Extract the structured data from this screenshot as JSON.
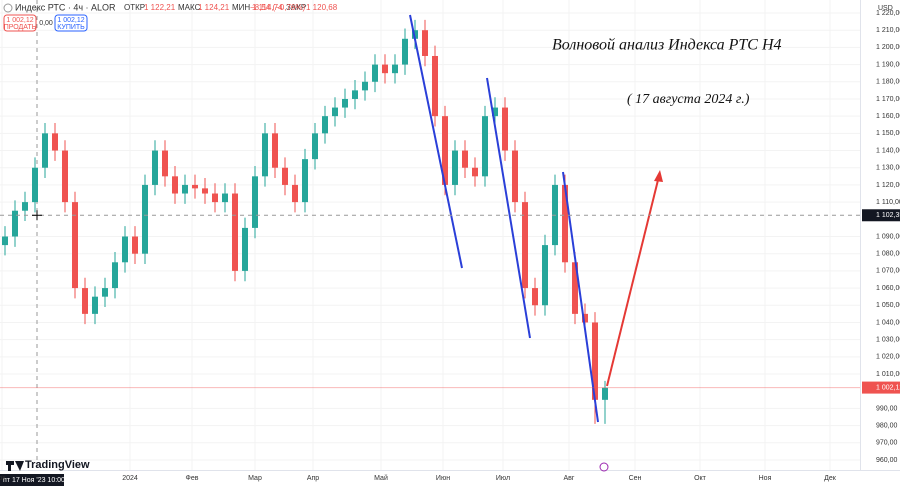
{
  "header": {
    "symbol": "Индекс РТС · 4ч · ALOR",
    "ohlc": [
      {
        "label": "ОТКР",
        "value": "1 122,21"
      },
      {
        "label": "МАКС",
        "value": "1 124,21"
      },
      {
        "label": "МИН",
        "value": "1 114,74"
      },
      {
        "label": "ЗАКР",
        "value": "1 120,68"
      }
    ],
    "change": "−8,54 (−0,76%)",
    "sell_price": "1 002,12",
    "sell": "ПРОДАТЬ",
    "spread": "0,00",
    "buy_price": "1 002,12",
    "buy": "КУПИТЬ",
    "currency": "USD"
  },
  "annotations": {
    "title": "Волновой анализ Индекса РТС Н4",
    "date": "( 17 августа 2024 г.)"
  },
  "footer": {
    "brand": "TradingView",
    "crosshair_time": "пт 17 Ноя '23  10:00"
  },
  "chart_data": {
    "type": "candlestick",
    "up_color": "#26a69a",
    "down_color": "#ef5350",
    "candles": [
      [
        1085,
        1096,
        1079,
        1090
      ],
      [
        1090,
        1111,
        1084,
        1105
      ],
      [
        1105,
        1116,
        1099,
        1110
      ],
      [
        1110,
        1136,
        1104,
        1130
      ],
      [
        1130,
        1156,
        1124,
        1150
      ],
      [
        1150,
        1156,
        1134,
        1140
      ],
      [
        1140,
        1146,
        1104,
        1110
      ],
      [
        1110,
        1116,
        1054,
        1060
      ],
      [
        1060,
        1066,
        1039,
        1045
      ],
      [
        1045,
        1061,
        1039,
        1055
      ],
      [
        1055,
        1066,
        1049,
        1060
      ],
      [
        1060,
        1081,
        1054,
        1075
      ],
      [
        1075,
        1096,
        1069,
        1090
      ],
      [
        1090,
        1096,
        1074,
        1080
      ],
      [
        1080,
        1126,
        1074,
        1120
      ],
      [
        1120,
        1146,
        1114,
        1140
      ],
      [
        1140,
        1146,
        1119,
        1125
      ],
      [
        1125,
        1131,
        1109,
        1115
      ],
      [
        1115,
        1126,
        1109,
        1120
      ],
      [
        1120,
        1126,
        1112,
        1118
      ],
      [
        1118,
        1124,
        1109,
        1115
      ],
      [
        1115,
        1121,
        1104,
        1110
      ],
      [
        1110,
        1121,
        1104,
        1115
      ],
      [
        1115,
        1121,
        1064,
        1070
      ],
      [
        1070,
        1101,
        1064,
        1095
      ],
      [
        1095,
        1131,
        1089,
        1125
      ],
      [
        1125,
        1156,
        1119,
        1150
      ],
      [
        1150,
        1156,
        1124,
        1130
      ],
      [
        1130,
        1136,
        1114,
        1120
      ],
      [
        1120,
        1126,
        1104,
        1110
      ],
      [
        1110,
        1141,
        1104,
        1135
      ],
      [
        1135,
        1156,
        1129,
        1150
      ],
      [
        1150,
        1166,
        1144,
        1160
      ],
      [
        1160,
        1171,
        1154,
        1165
      ],
      [
        1165,
        1176,
        1159,
        1170
      ],
      [
        1170,
        1181,
        1164,
        1175
      ],
      [
        1175,
        1186,
        1169,
        1180
      ],
      [
        1180,
        1196,
        1174,
        1190
      ],
      [
        1190,
        1196,
        1179,
        1185
      ],
      [
        1185,
        1196,
        1179,
        1190
      ],
      [
        1190,
        1211,
        1184,
        1205
      ],
      [
        1205,
        1216,
        1199,
        1210
      ],
      [
        1210,
        1216,
        1189,
        1195
      ],
      [
        1195,
        1201,
        1154,
        1160
      ],
      [
        1160,
        1166,
        1114,
        1120
      ],
      [
        1120,
        1146,
        1114,
        1140
      ],
      [
        1140,
        1146,
        1124,
        1130
      ],
      [
        1130,
        1136,
        1119,
        1125
      ],
      [
        1125,
        1166,
        1119,
        1160
      ],
      [
        1160,
        1171,
        1154,
        1165
      ],
      [
        1165,
        1171,
        1134,
        1140
      ],
      [
        1140,
        1146,
        1104,
        1110
      ],
      [
        1110,
        1116,
        1054,
        1060
      ],
      [
        1060,
        1066,
        1044,
        1050
      ],
      [
        1050,
        1091,
        1044,
        1085
      ],
      [
        1085,
        1126,
        1079,
        1120
      ],
      [
        1120,
        1126,
        1069,
        1075
      ],
      [
        1075,
        1081,
        1039,
        1045
      ],
      [
        1045,
        1051,
        1034,
        1040
      ],
      [
        1040,
        1046,
        981,
        995
      ],
      [
        995,
        1006,
        981,
        1002
      ]
    ],
    "xlim": [
      -0.5,
      85.5
    ],
    "xticks": [
      {
        "value": -0.3,
        "label": "ок"
      },
      {
        "value": 12.5,
        "label": "2024"
      },
      {
        "value": 18.7,
        "label": "Фев"
      },
      {
        "value": 25,
        "label": "Мар"
      },
      {
        "value": 30.8,
        "label": "Апр"
      },
      {
        "value": 37.6,
        "label": "Май"
      },
      {
        "value": 43.8,
        "label": "Июн"
      },
      {
        "value": 49.8,
        "label": "Июл"
      },
      {
        "value": 56.4,
        "label": "Авг"
      },
      {
        "value": 63,
        "label": "Сен"
      },
      {
        "value": 69.5,
        "label": "Окт"
      },
      {
        "value": 76,
        "label": "Ноя"
      },
      {
        "value": 82.5,
        "label": "Дек"
      }
    ],
    "ylim": [
      960,
      1220
    ],
    "yticks": [
      {
        "value": 1220,
        "label": "1 220,00"
      },
      {
        "value": 1210,
        "label": "1 210,00"
      },
      {
        "value": 1200,
        "label": "1 200,00"
      },
      {
        "value": 1190,
        "label": "1 190,00"
      },
      {
        "value": 1180,
        "label": "1 180,00"
      },
      {
        "value": 1170,
        "label": "1 170,00"
      },
      {
        "value": 1160,
        "label": "1 160,00"
      },
      {
        "value": 1150,
        "label": "1 150,00"
      },
      {
        "value": 1140,
        "label": "1 140,00"
      },
      {
        "value": 1130,
        "label": "1 130,00"
      },
      {
        "value": 1120,
        "label": "1 120,00"
      },
      {
        "value": 1110,
        "label": "1 110,00"
      },
      {
        "value": 1090,
        "label": "1 090,00"
      },
      {
        "value": 1080,
        "label": "1 080,00"
      },
      {
        "value": 1070,
        "label": "1 070,00"
      },
      {
        "value": 1060,
        "label": "1 060,00"
      },
      {
        "value": 1050,
        "label": "1 050,00"
      },
      {
        "value": 1040,
        "label": "1 040,00"
      },
      {
        "value": 1030,
        "label": "1 030,00"
      },
      {
        "value": 1020,
        "label": "1 020,00"
      },
      {
        "value": 1010,
        "label": "1 010,00"
      },
      {
        "value": 990,
        "label": "990,00"
      },
      {
        "value": 980,
        "label": "980,00"
      },
      {
        "value": 970,
        "label": "970,00"
      },
      {
        "value": 960,
        "label": "960,00"
      }
    ],
    "crosshair_price": {
      "value": 1102.35,
      "label": "1 102,35"
    },
    "last_price": {
      "value": 1002.12,
      "label": "1 002,12",
      "color": "#ef5350"
    }
  }
}
